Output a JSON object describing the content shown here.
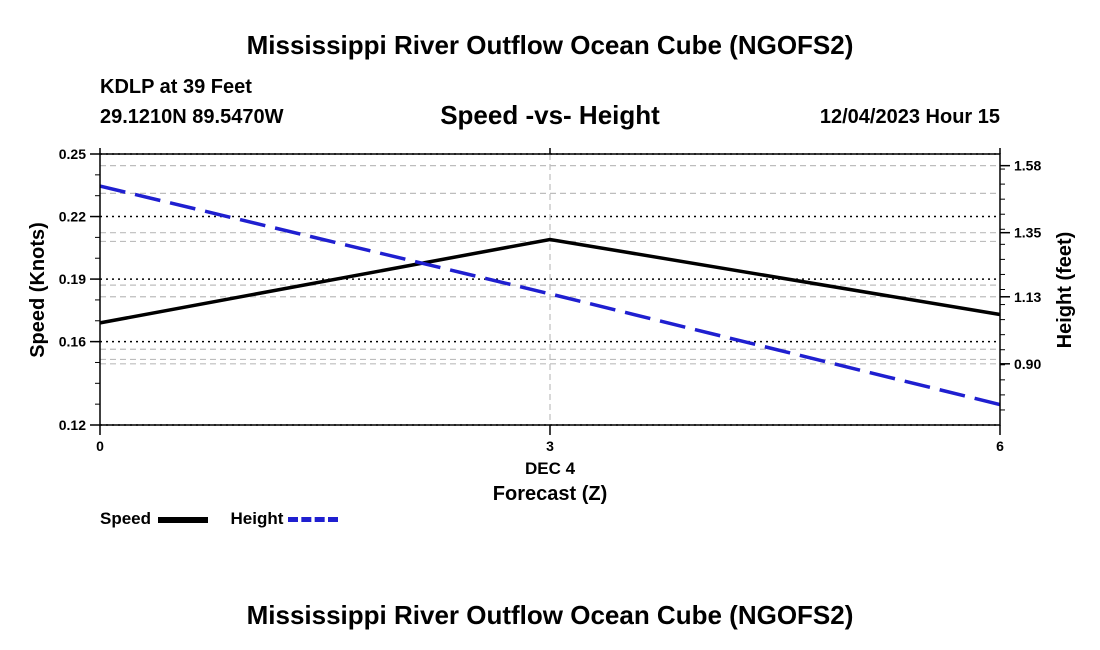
{
  "header": {
    "title": "Mississippi River Outflow Ocean Cube (NGOFS2)",
    "station": "KDLP at 39 Feet",
    "location": "29.1210N  89.5470W",
    "datetime": "12/04/2023 Hour 15",
    "footer_title": "Mississippi River Outflow Ocean Cube (NGOFS2)"
  },
  "chart_data": {
    "type": "line",
    "title": "Speed -vs- Height",
    "x": [
      0,
      3,
      6
    ],
    "x_tick_labels": [
      "0",
      "3",
      "6"
    ],
    "x_date_label": "DEC 4",
    "xlabel": "Forecast (Z)",
    "xlim": [
      0,
      6
    ],
    "ylabel": "Speed (Knots)",
    "ylim": [
      0.12,
      0.25
    ],
    "y_ticks": [
      0.12,
      0.16,
      0.19,
      0.22,
      0.25
    ],
    "y_tick_labels": [
      "0.12",
      "0.16",
      "0.19",
      "0.22",
      "0.25"
    ],
    "y2label": "Height (feet)",
    "y2lim": [
      0.69,
      1.62
    ],
    "y2_ticks": [
      0.9,
      1.13,
      1.35,
      1.58
    ],
    "y2_tick_labels": [
      "0.90",
      "1.13",
      "1.35",
      "1.58"
    ],
    "grid": true,
    "legend_position": "bottom-left",
    "series": [
      {
        "name": "Speed",
        "axis": "left",
        "values": [
          0.169,
          0.209,
          0.173
        ],
        "color": "#000000",
        "style": "solid"
      },
      {
        "name": "Height",
        "axis": "right",
        "values": [
          1.51,
          1.14,
          0.76
        ],
        "color": "#1f1fd0",
        "style": "dashed"
      }
    ]
  }
}
